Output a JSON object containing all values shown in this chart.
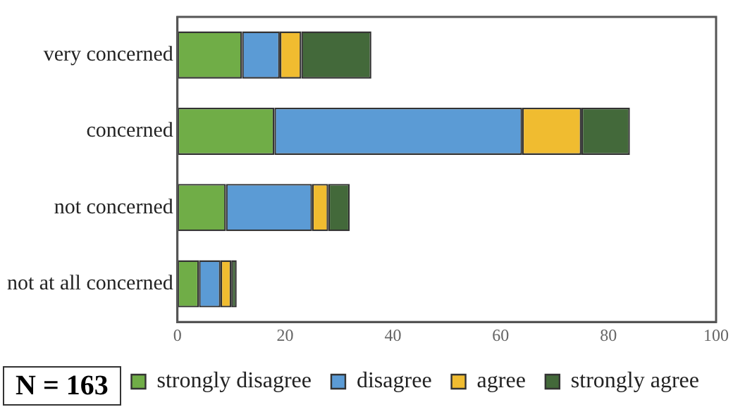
{
  "chart_data": {
    "type": "bar",
    "orientation": "horizontal",
    "stacked": true,
    "categories": [
      "very concerned",
      "concerned",
      "not concerned",
      "not at all concerned"
    ],
    "series": [
      {
        "name": "strongly disagree",
        "color": "#70ad47",
        "values": [
          12,
          18,
          9,
          4
        ]
      },
      {
        "name": "disagree",
        "color": "#5b9bd5",
        "values": [
          7,
          46,
          16,
          4
        ]
      },
      {
        "name": "agree",
        "color": "#f0bc30",
        "values": [
          4,
          11,
          3,
          2
        ]
      },
      {
        "name": "strongly agree",
        "color": "#43693a",
        "values": [
          13,
          9,
          4,
          1
        ]
      }
    ],
    "xlim": [
      0,
      100
    ],
    "xticks": [
      0,
      20,
      40,
      60,
      80,
      100
    ],
    "grid": false,
    "legend": "bottom",
    "annotations": [
      "N = 163"
    ]
  }
}
